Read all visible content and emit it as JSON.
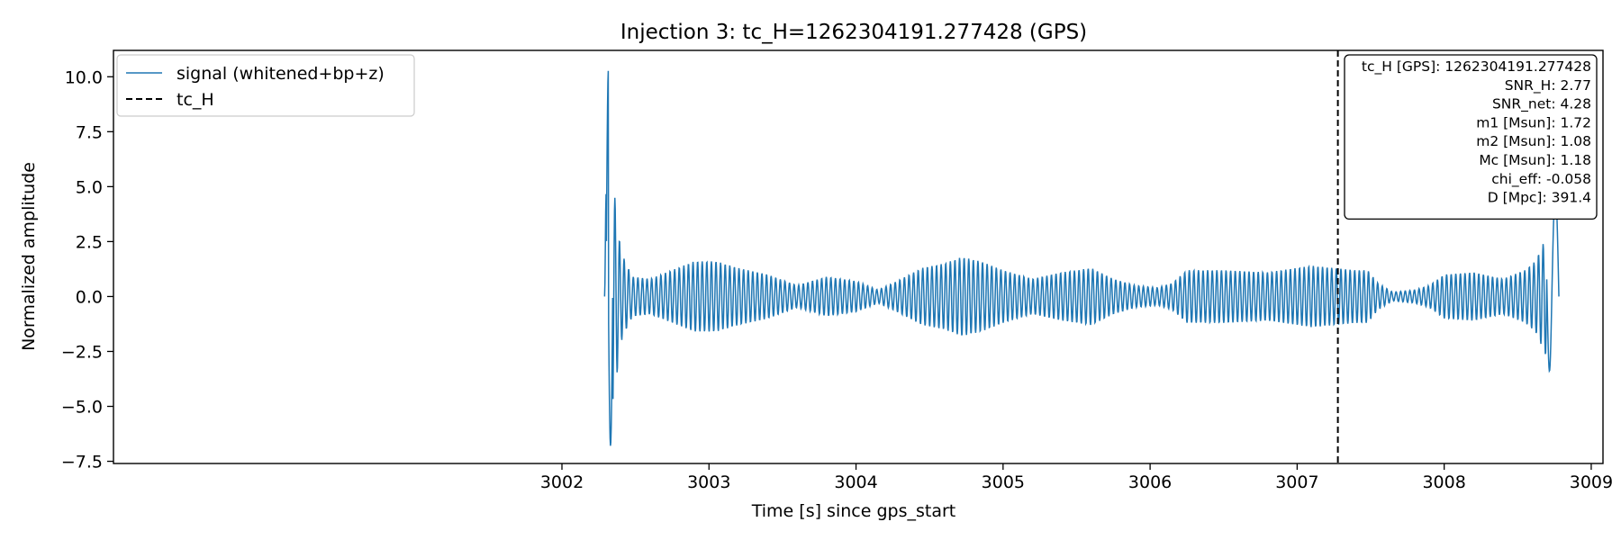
{
  "chart_data": {
    "type": "line",
    "title": "Injection 3: tc_H=1262304191.277428 (GPS)",
    "xlabel": "Time [s] since gps_start",
    "ylabel": "Normalized amplitude",
    "xlim": [
      2998.95,
      3009.08
    ],
    "ylim": [
      -7.6,
      11.2
    ],
    "xticks": [
      3002,
      3003,
      3004,
      3005,
      3006,
      3007,
      3008,
      3009
    ],
    "yticks": [
      -7.5,
      -5.0,
      -2.5,
      0.0,
      2.5,
      5.0,
      7.5,
      10.0
    ],
    "xtick_labels": [
      "3002",
      "3003",
      "3004",
      "3005",
      "3006",
      "3007",
      "3008",
      "3009"
    ],
    "ytick_labels": [
      "−7.5",
      "−5.0",
      "−2.5",
      "0.0",
      "2.5",
      "5.0",
      "7.5",
      "10.0"
    ],
    "series": [
      {
        "name": "signal (whitened+bp+z)",
        "color": "#1f77b4",
        "style": "solid",
        "x_start": 3002.29,
        "x_end": 3008.78,
        "oscillation_cycles_per_s": 32,
        "envelope": [
          [
            3002.29,
            0.0
          ],
          [
            3002.31,
            10.3
          ],
          [
            3002.33,
            6.8
          ],
          [
            3002.36,
            4.5
          ],
          [
            3002.38,
            3.2
          ],
          [
            3002.4,
            2.1
          ],
          [
            3002.43,
            1.6
          ],
          [
            3002.48,
            0.9
          ],
          [
            3002.6,
            0.8
          ],
          [
            3002.75,
            1.2
          ],
          [
            3002.9,
            1.6
          ],
          [
            3003.05,
            1.6
          ],
          [
            3003.2,
            1.3
          ],
          [
            3003.4,
            1.0
          ],
          [
            3003.6,
            0.5
          ],
          [
            3003.8,
            0.9
          ],
          [
            3004.0,
            0.7
          ],
          [
            3004.15,
            0.3
          ],
          [
            3004.25,
            0.6
          ],
          [
            3004.45,
            1.3
          ],
          [
            3004.6,
            1.5
          ],
          [
            3004.72,
            1.8
          ],
          [
            3004.85,
            1.6
          ],
          [
            3005.0,
            1.2
          ],
          [
            3005.2,
            0.8
          ],
          [
            3005.4,
            1.1
          ],
          [
            3005.6,
            1.3
          ],
          [
            3005.75,
            0.8
          ],
          [
            3005.9,
            0.5
          ],
          [
            3006.05,
            0.4
          ],
          [
            3006.15,
            0.6
          ],
          [
            3006.25,
            1.2
          ],
          [
            3006.5,
            1.2
          ],
          [
            3006.8,
            1.1
          ],
          [
            3007.0,
            1.3
          ],
          [
            3007.1,
            1.4
          ],
          [
            3007.25,
            1.3
          ],
          [
            3007.4,
            1.2
          ],
          [
            3007.48,
            1.2
          ],
          [
            3007.55,
            0.6
          ],
          [
            3007.65,
            0.2
          ],
          [
            3007.8,
            0.3
          ],
          [
            3007.9,
            0.5
          ],
          [
            3008.0,
            1.0
          ],
          [
            3008.2,
            1.1
          ],
          [
            3008.4,
            0.8
          ],
          [
            3008.55,
            1.2
          ],
          [
            3008.62,
            1.6
          ],
          [
            3008.68,
            2.5
          ],
          [
            3008.72,
            3.3
          ],
          [
            3008.75,
            4.8
          ],
          [
            3008.78,
            0.0
          ]
        ]
      }
    ],
    "vline": {
      "name": "tc_H",
      "x": 3007.277,
      "color": "#000000",
      "style": "dashed"
    },
    "legend": {
      "placement": "top-left",
      "entries": [
        {
          "label": "signal (whitened+bp+z)",
          "style": "solid",
          "color": "#1f77b4"
        },
        {
          "label": "tc_H",
          "style": "dashed",
          "color": "#000000"
        }
      ]
    },
    "info_box": {
      "placement": "top-right",
      "lines": [
        "tc_H [GPS]: 1262304191.277428",
        "SNR_H: 2.77",
        "SNR_net: 4.28",
        "m1 [Msun]: 1.72",
        "m2 [Msun]: 1.08",
        "Mc [Msun]: 1.18",
        "chi_eff: -0.058",
        "D [Mpc]: 391.4"
      ]
    },
    "grid": false
  }
}
